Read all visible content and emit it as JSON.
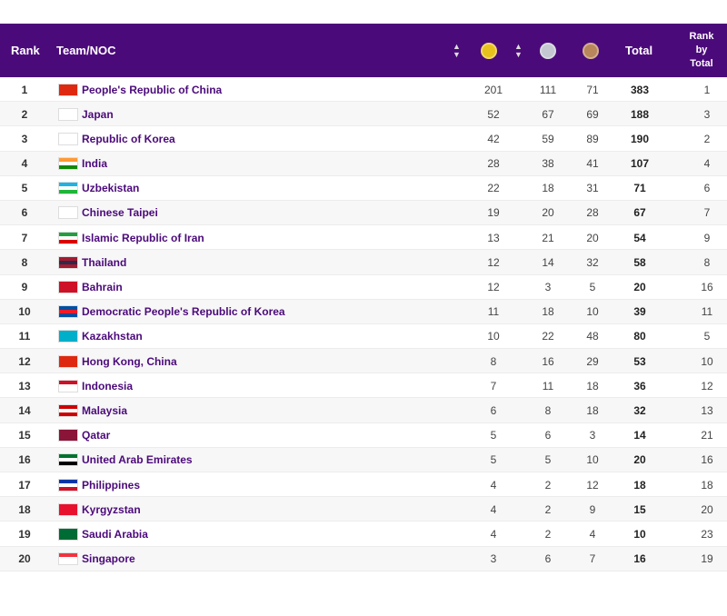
{
  "header": {
    "rank": "Rank",
    "team": "Team/NOC",
    "total": "Total",
    "rank_by_total": [
      "Rank",
      "by",
      "Total"
    ]
  },
  "medal_colors": {
    "gold": "#e8c21c",
    "silver": "#c4c8d0",
    "bronze": "#b9855a"
  },
  "header_color": "#4b0a7a",
  "rows": [
    {
      "rank": "1",
      "team": "People's Republic of China",
      "gold": "201",
      "silver": "111",
      "bronze": "71",
      "total": "383",
      "rank_by_total": "1",
      "flag": [
        "#de2910",
        "#de2910",
        "#de2910"
      ]
    },
    {
      "rank": "2",
      "team": "Japan",
      "gold": "52",
      "silver": "67",
      "bronze": "69",
      "total": "188",
      "rank_by_total": "3",
      "flag": [
        "#ffffff",
        "#ffffff",
        "#ffffff"
      ]
    },
    {
      "rank": "3",
      "team": "Republic of Korea",
      "gold": "42",
      "silver": "59",
      "bronze": "89",
      "total": "190",
      "rank_by_total": "2",
      "flag": [
        "#ffffff",
        "#ffffff",
        "#ffffff"
      ]
    },
    {
      "rank": "4",
      "team": "India",
      "gold": "28",
      "silver": "38",
      "bronze": "41",
      "total": "107",
      "rank_by_total": "4",
      "flag": [
        "#ff9933",
        "#ffffff",
        "#138808"
      ]
    },
    {
      "rank": "5",
      "team": "Uzbekistan",
      "gold": "22",
      "silver": "18",
      "bronze": "31",
      "total": "71",
      "rank_by_total": "6",
      "flag": [
        "#1eb3e2",
        "#ffffff",
        "#1eb53a"
      ]
    },
    {
      "rank": "6",
      "team": "Chinese Taipei",
      "gold": "19",
      "silver": "20",
      "bronze": "28",
      "total": "67",
      "rank_by_total": "7",
      "flag": [
        "#ffffff",
        "#ffffff",
        "#ffffff"
      ]
    },
    {
      "rank": "7",
      "team": "Islamic Republic of Iran",
      "gold": "13",
      "silver": "21",
      "bronze": "20",
      "total": "54",
      "rank_by_total": "9",
      "flag": [
        "#239f40",
        "#ffffff",
        "#da0000"
      ]
    },
    {
      "rank": "8",
      "team": "Thailand",
      "gold": "12",
      "silver": "14",
      "bronze": "32",
      "total": "58",
      "rank_by_total": "8",
      "flag": [
        "#a51931",
        "#2d2a4a",
        "#a51931"
      ]
    },
    {
      "rank": "9",
      "team": "Bahrain",
      "gold": "12",
      "silver": "3",
      "bronze": "5",
      "total": "20",
      "rank_by_total": "16",
      "flag": [
        "#ce1126",
        "#ce1126",
        "#ce1126"
      ]
    },
    {
      "rank": "10",
      "team": "Democratic People's Republic of Korea",
      "gold": "11",
      "silver": "18",
      "bronze": "10",
      "total": "39",
      "rank_by_total": "11",
      "flag": [
        "#024fa2",
        "#ed1c27",
        "#024fa2"
      ]
    },
    {
      "rank": "11",
      "team": "Kazakhstan",
      "gold": "10",
      "silver": "22",
      "bronze": "48",
      "total": "80",
      "rank_by_total": "5",
      "flag": [
        "#00afca",
        "#00afca",
        "#00afca"
      ]
    },
    {
      "rank": "12",
      "team": "Hong Kong, China",
      "gold": "8",
      "silver": "16",
      "bronze": "29",
      "total": "53",
      "rank_by_total": "10",
      "flag": [
        "#de2910",
        "#de2910",
        "#de2910"
      ]
    },
    {
      "rank": "13",
      "team": "Indonesia",
      "gold": "7",
      "silver": "11",
      "bronze": "18",
      "total": "36",
      "rank_by_total": "12",
      "flag": [
        "#ce1126",
        "#ffffff",
        "#ffffff"
      ]
    },
    {
      "rank": "14",
      "team": "Malaysia",
      "gold": "6",
      "silver": "8",
      "bronze": "18",
      "total": "32",
      "rank_by_total": "13",
      "flag": [
        "#cc0001",
        "#ffffff",
        "#cc0001"
      ]
    },
    {
      "rank": "15",
      "team": "Qatar",
      "gold": "5",
      "silver": "6",
      "bronze": "3",
      "total": "14",
      "rank_by_total": "21",
      "flag": [
        "#8a1538",
        "#8a1538",
        "#8a1538"
      ]
    },
    {
      "rank": "16",
      "team": "United Arab Emirates",
      "gold": "5",
      "silver": "5",
      "bronze": "10",
      "total": "20",
      "rank_by_total": "16",
      "flag": [
        "#00732f",
        "#ffffff",
        "#000000"
      ]
    },
    {
      "rank": "17",
      "team": "Philippines",
      "gold": "4",
      "silver": "2",
      "bronze": "12",
      "total": "18",
      "rank_by_total": "18",
      "flag": [
        "#0038a8",
        "#ffffff",
        "#ce1126"
      ]
    },
    {
      "rank": "18",
      "team": "Kyrgyzstan",
      "gold": "4",
      "silver": "2",
      "bronze": "9",
      "total": "15",
      "rank_by_total": "20",
      "flag": [
        "#e8112d",
        "#e8112d",
        "#e8112d"
      ]
    },
    {
      "rank": "19",
      "team": "Saudi Arabia",
      "gold": "4",
      "silver": "2",
      "bronze": "4",
      "total": "10",
      "rank_by_total": "23",
      "flag": [
        "#006c35",
        "#006c35",
        "#006c35"
      ]
    },
    {
      "rank": "20",
      "team": "Singapore",
      "gold": "3",
      "silver": "6",
      "bronze": "7",
      "total": "16",
      "rank_by_total": "19",
      "flag": [
        "#ef3340",
        "#ffffff",
        "#ffffff"
      ]
    }
  ]
}
